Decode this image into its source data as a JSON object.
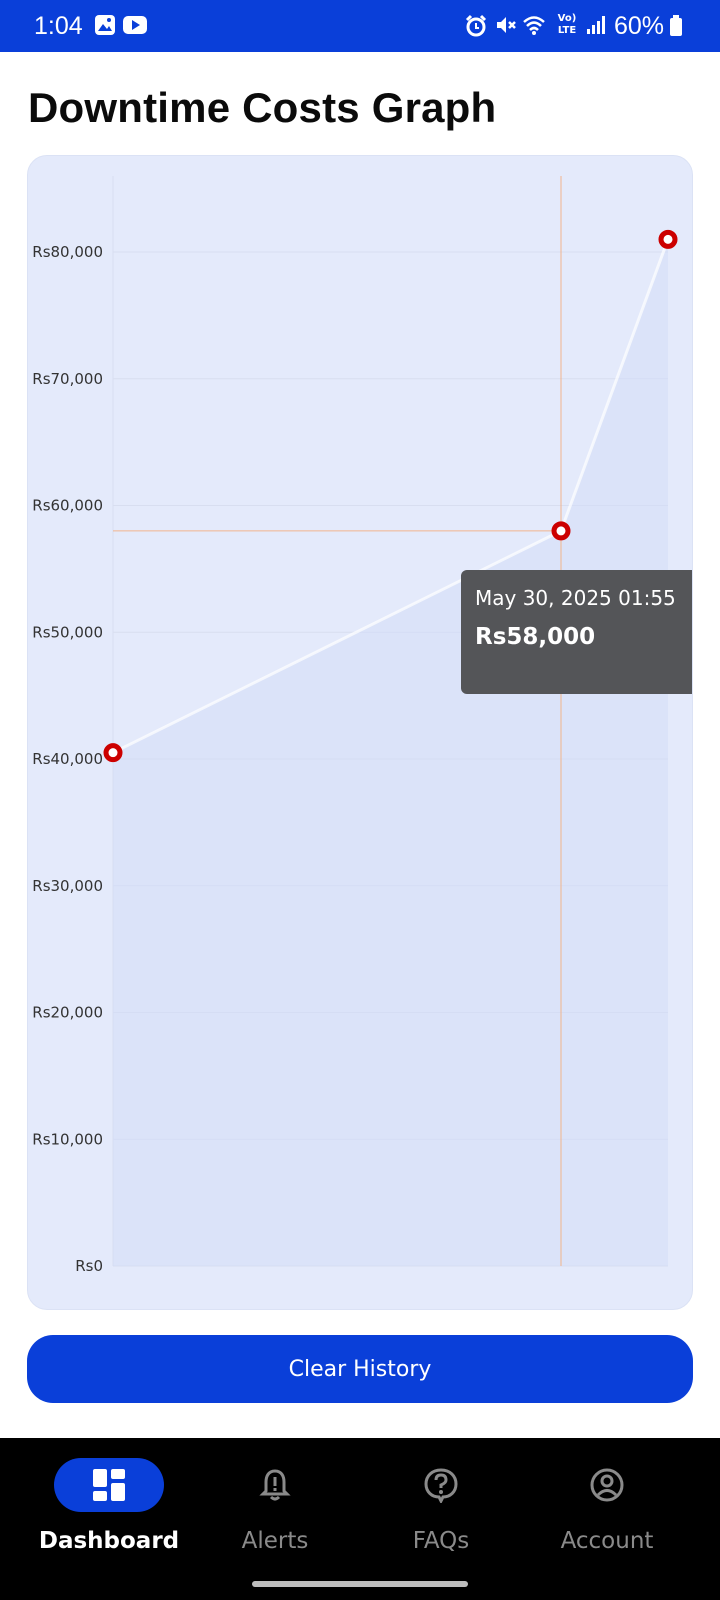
{
  "status_bar": {
    "time": "1:04",
    "battery": "60%",
    "icons": [
      "image-icon",
      "youtube-icon",
      "alarm-icon",
      "mute-icon",
      "wifi-icon",
      "volte-icon",
      "signal-icon",
      "battery-icon"
    ],
    "volte_label_top": "Vo)",
    "volte_label_bottom": "LTE"
  },
  "page": {
    "title": "Downtime Costs Graph"
  },
  "tooltip": {
    "date": "May 30, 2025 01:55",
    "value": "Rs58,000"
  },
  "chart_data": {
    "type": "area",
    "title": "",
    "xlabel": "",
    "ylabel": "",
    "ylim": [
      0,
      86000
    ],
    "yticks": [
      0,
      10000,
      20000,
      30000,
      40000,
      50000,
      60000,
      70000,
      80000
    ],
    "ytick_labels": [
      "Rs0",
      "Rs10,000",
      "Rs20,000",
      "Rs30,000",
      "Rs40,000",
      "Rs50,000",
      "Rs60,000",
      "Rs70,000",
      "Rs80,000"
    ],
    "series": [
      {
        "values": [
          40500,
          58000,
          81000
        ]
      }
    ],
    "selected_index": 1,
    "grid": true,
    "colors": {
      "line": "#ffffff",
      "marker": "#cc0000",
      "fill": "#d3dcf7",
      "crosshair": "#f2b48c"
    }
  },
  "actions": {
    "clear_label": "Clear History"
  },
  "nav": {
    "items": [
      {
        "label": "Dashboard",
        "icon": "dashboard-icon",
        "active": true
      },
      {
        "label": "Alerts",
        "icon": "bell-icon",
        "active": false
      },
      {
        "label": "FAQs",
        "icon": "question-icon",
        "active": false
      },
      {
        "label": "Account",
        "icon": "account-icon",
        "active": false
      }
    ]
  },
  "colors": {
    "brand": "#0a3fd9",
    "nav_bg": "#000000",
    "card_bg": "#e4eafb"
  }
}
